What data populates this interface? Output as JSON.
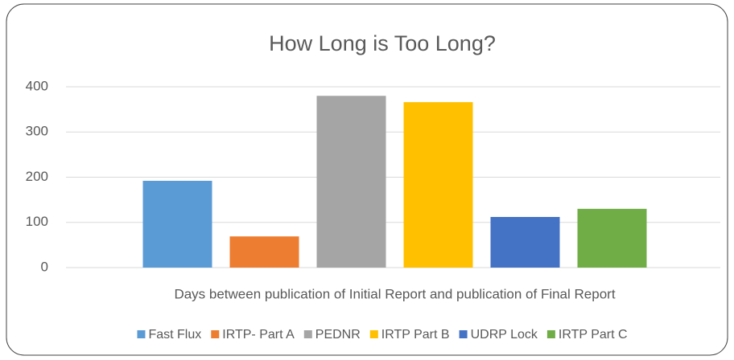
{
  "chart_data": {
    "type": "bar",
    "title": "How Long is Too Long?",
    "categories": [
      "Days between publication of Initial Report and publication of Final Report"
    ],
    "series": [
      {
        "name": "Fast Flux",
        "color": "#5b9bd5",
        "values": [
          192
        ]
      },
      {
        "name": "IRTP- Part A",
        "color": "#ed7d31",
        "values": [
          69
        ]
      },
      {
        "name": "PEDNR",
        "color": "#a5a5a5",
        "values": [
          380
        ]
      },
      {
        "name": "IRTP Part B",
        "color": "#ffc000",
        "values": [
          366
        ]
      },
      {
        "name": "UDRP Lock",
        "color": "#4472c4",
        "values": [
          112
        ]
      },
      {
        "name": "IRTP Part C",
        "color": "#70ad47",
        "values": [
          130
        ]
      }
    ],
    "ylim": [
      0,
      400
    ],
    "yticks": [
      0,
      100,
      200,
      300,
      400
    ],
    "grid": true,
    "legend": "bottom"
  }
}
